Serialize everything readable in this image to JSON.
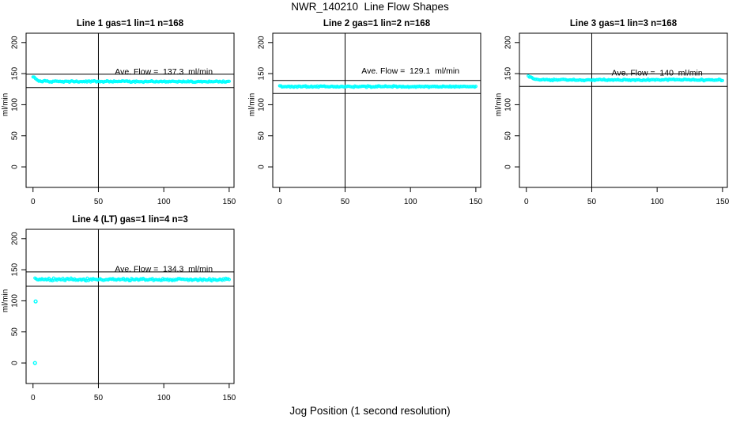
{
  "figure": {
    "title": "NWR_140210  Line Flow Shapes",
    "x_axis_title": "Jog Position (1 second resolution)"
  },
  "style": {
    "marker_color": "#00FFFF",
    "axis_color": "#000000",
    "background": "#FFFFFF"
  },
  "axes": {
    "y_axis_label": "ml/min",
    "x_ticks": [
      0,
      50,
      100,
      150
    ],
    "y_ticks": [
      0,
      50,
      100,
      150,
      200
    ],
    "x_range": [
      -5.3,
      153.7
    ],
    "y_range": [
      -33,
      215
    ],
    "vline_x": 50
  },
  "chart_data": [
    {
      "type": "scatter",
      "title": "Line 1 gas=1 lin=1 n=168",
      "n": 168,
      "ave_flow": 137.3,
      "ave_flow_label": "Ave. Flow =  137.3  ml/min",
      "label_x": 100,
      "label_y": 153,
      "upper_line": 149,
      "lower_line": 127.5,
      "x_start": 0,
      "x_end": 150,
      "keypoints": [
        [
          0,
          146
        ],
        [
          1,
          143.5
        ],
        [
          2,
          141.5
        ],
        [
          3,
          140
        ],
        [
          4,
          139
        ],
        [
          6,
          138
        ],
        [
          9,
          137.5
        ],
        [
          14,
          137.3
        ],
        [
          150,
          137.3
        ]
      ],
      "noise": 1.3,
      "outliers": []
    },
    {
      "type": "scatter",
      "title": "Line 2 gas=1 lin=2 n=168",
      "n": 168,
      "ave_flow": 129.1,
      "ave_flow_label": "Ave. Flow =  129.1  ml/min",
      "label_x": 100,
      "label_y": 154,
      "upper_line": 139,
      "lower_line": 118,
      "x_start": 0,
      "x_end": 150,
      "keypoints": [
        [
          0,
          130.5
        ],
        [
          2,
          129.4
        ],
        [
          5,
          129.1
        ],
        [
          150,
          129.1
        ]
      ],
      "noise": 1.4,
      "outliers": []
    },
    {
      "type": "scatter",
      "title": "Line 3 gas=1 lin=3 n=168",
      "n": 168,
      "ave_flow": 140,
      "ave_flow_label": "Ave. Flow =  140  ml/min",
      "label_x": 100,
      "label_y": 151,
      "upper_line": 149.5,
      "lower_line": 129.5,
      "x_start": 1.5,
      "x_end": 150,
      "keypoints": [
        [
          1.5,
          146.5
        ],
        [
          3,
          144
        ],
        [
          5,
          142
        ],
        [
          7,
          141
        ],
        [
          10,
          140.3
        ],
        [
          15,
          140
        ],
        [
          150,
          140
        ]
      ],
      "noise": 1.5,
      "outliers": []
    },
    {
      "type": "scatter",
      "title": "Line 4 (LT) gas=1 lin=4 n=3",
      "n": 3,
      "ave_flow": 134.3,
      "ave_flow_label": "Ave. Flow =  134.3  ml/min",
      "label_x": 100,
      "label_y": 150.5,
      "upper_line": 146.5,
      "lower_line": 123.5,
      "x_start": 1.5,
      "x_end": 150,
      "keypoints": [
        [
          1.5,
          136
        ],
        [
          4,
          134.8
        ],
        [
          8,
          134.3
        ],
        [
          150,
          134.3
        ]
      ],
      "noise": 2.2,
      "outliers": [
        [
          2,
          99
        ],
        [
          1.5,
          0
        ]
      ]
    }
  ]
}
